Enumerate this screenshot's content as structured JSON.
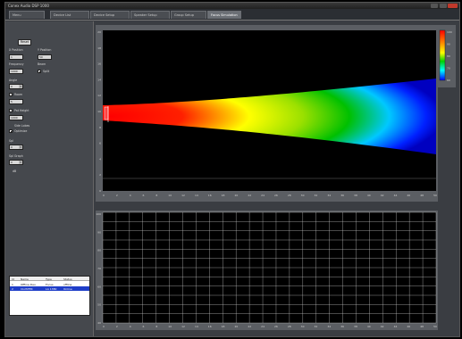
{
  "window": {
    "title": "Conex Audio DSP 1000"
  },
  "tabs": [
    {
      "label": "Menu"
    },
    {
      "label": "Device List"
    },
    {
      "label": "Device Setup"
    },
    {
      "label": "Speaker Setup"
    },
    {
      "label": "Group Setup"
    },
    {
      "label": "Focus Simulation"
    }
  ],
  "active_tab": 5,
  "left_panel": {
    "reset_label": "Reset",
    "x_position_label": "X Position",
    "x_position_value": "1",
    "y_position_label": "Y Position",
    "y_position_value": "50",
    "frequency_label": "Frequency",
    "frequency_value": "1000",
    "beam_label": "Beam",
    "beam_split_label": "Split",
    "angle_label": "Angle",
    "angle_value": "0",
    "room_label": "Room",
    "room_value": "5",
    "pattern_label": "Pat Height",
    "pattern_value": "1000",
    "side_lobes_label": "Side Lobes",
    "optimize_label": "Optimize",
    "spl_label": "Spl",
    "spl_value": "0",
    "spl_graph_label": "Spl Graph",
    "spl_graph_value": "0",
    "extra_label": "dB"
  },
  "listbox": {
    "headers": [
      "Id",
      "Name",
      "Type",
      "Status"
    ],
    "rows": [
      {
        "id": "1",
        "name": "Offline Dev.",
        "type": "Focus",
        "status": "offline",
        "selected": false
      },
      {
        "id": "2",
        "name": "CLUSTER",
        "type": "LA 1380",
        "status": "Online",
        "selected": true
      }
    ]
  },
  "top_plot": {
    "y_ticks": [
      "20",
      "18",
      "16",
      "14",
      "12",
      "10",
      "8",
      "6",
      "4",
      "2",
      "0"
    ],
    "x_ticks": [
      "0",
      "2",
      "4",
      "6",
      "8",
      "10",
      "12",
      "14",
      "16",
      "18",
      "20",
      "22",
      "24",
      "26",
      "28",
      "30",
      "32",
      "34",
      "36",
      "38",
      "40",
      "42",
      "44",
      "46",
      "48",
      "50"
    ]
  },
  "bottom_plot": {
    "y_ticks": [
      "100",
      "90",
      "80",
      "70",
      "60",
      "50",
      "40"
    ],
    "x_ticks": [
      "0",
      "2",
      "4",
      "6",
      "8",
      "10",
      "12",
      "14",
      "16",
      "18",
      "20",
      "22",
      "24",
      "26",
      "28",
      "30",
      "32",
      "34",
      "36",
      "38",
      "40",
      "42",
      "44",
      "46",
      "48",
      "50"
    ]
  },
  "colorbar": {
    "ticks": [
      "100",
      "90",
      "80",
      "70",
      "60"
    ],
    "colors": [
      "#ff0000",
      "#ff8800",
      "#ffff00",
      "#00d000",
      "#00ffff",
      "#0000ff"
    ]
  }
}
